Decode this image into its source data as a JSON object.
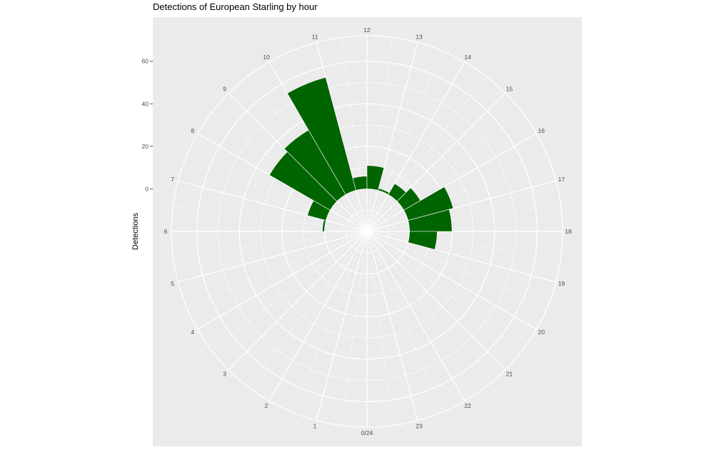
{
  "chart_data": {
    "type": "bar",
    "coord": "polar",
    "title": "Detections of European Starling by hour",
    "xlabel": "",
    "ylabel": "Detections",
    "hour_labels": [
      "0/24",
      "1",
      "2",
      "3",
      "4",
      "5",
      "6",
      "7",
      "8",
      "9",
      "10",
      "11",
      "12",
      "13",
      "14",
      "15",
      "16",
      "17",
      "18",
      "19",
      "20",
      "21",
      "22",
      "23"
    ],
    "y_ticks": [
      0,
      20,
      40,
      60
    ],
    "ylim": [
      -20,
      72
    ],
    "grid": true,
    "colors": {
      "bar": "#006400",
      "panel": "#ebebeb",
      "grid": "#ffffff"
    },
    "series": [
      {
        "values": [
          {
            "hour": 6.5,
            "value": 1
          },
          {
            "hour": 7.5,
            "value": 9
          },
          {
            "hour": 8.5,
            "value": 33
          },
          {
            "hour": 9.5,
            "value": 35
          },
          {
            "hour": 10.5,
            "value": 55
          },
          {
            "hour": 11.5,
            "value": 6
          },
          {
            "hour": 12.5,
            "value": 11
          },
          {
            "hour": 13.5,
            "value": 1
          },
          {
            "hour": 14.5,
            "value": 6
          },
          {
            "hour": 15.5,
            "value": 9
          },
          {
            "hour": 16.5,
            "value": 22
          },
          {
            "hour": 17.5,
            "value": 20
          },
          {
            "hour": 18.5,
            "value": 13
          }
        ]
      }
    ]
  }
}
